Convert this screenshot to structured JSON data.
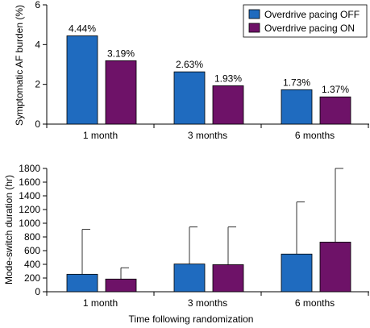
{
  "chart_data": [
    {
      "type": "bar",
      "title": "",
      "xlabel": "",
      "ylabel": "Symptomatic AF burden (%)",
      "ylim": [
        0,
        6
      ],
      "yticks": [
        0,
        2,
        4,
        6
      ],
      "categories": [
        "1 month",
        "3 months",
        "6 months"
      ],
      "series": [
        {
          "name": "Overdrive pacing OFF",
          "values": [
            4.44,
            2.63,
            1.73
          ],
          "labels": [
            "4.44%",
            "2.63%",
            "1.73%"
          ],
          "color": "#1f6bbf"
        },
        {
          "name": "Overdrive pacing ON",
          "values": [
            3.19,
            1.93,
            1.37
          ],
          "labels": [
            "3.19%",
            "1.93%",
            "1.37%"
          ],
          "color": "#6e1268"
        }
      ],
      "legend": "top-right",
      "grid": false
    },
    {
      "type": "bar",
      "title": "",
      "xlabel": "Time following randomization",
      "ylabel": "Mode-switch duration (hr)",
      "ylim": [
        0,
        1800
      ],
      "yticks": [
        0,
        200,
        400,
        600,
        800,
        1000,
        1200,
        1400,
        1600,
        1800
      ],
      "categories": [
        "1 month",
        "3 months",
        "6 months"
      ],
      "series": [
        {
          "name": "Overdrive pacing OFF",
          "values": [
            255,
            405,
            550
          ],
          "error_upper": [
            910,
            945,
            1310
          ],
          "color": "#1f6bbf"
        },
        {
          "name": "Overdrive pacing ON",
          "values": [
            185,
            395,
            725
          ],
          "error_upper": [
            350,
            945,
            1800
          ],
          "color": "#6e1268"
        }
      ],
      "grid": false
    }
  ]
}
